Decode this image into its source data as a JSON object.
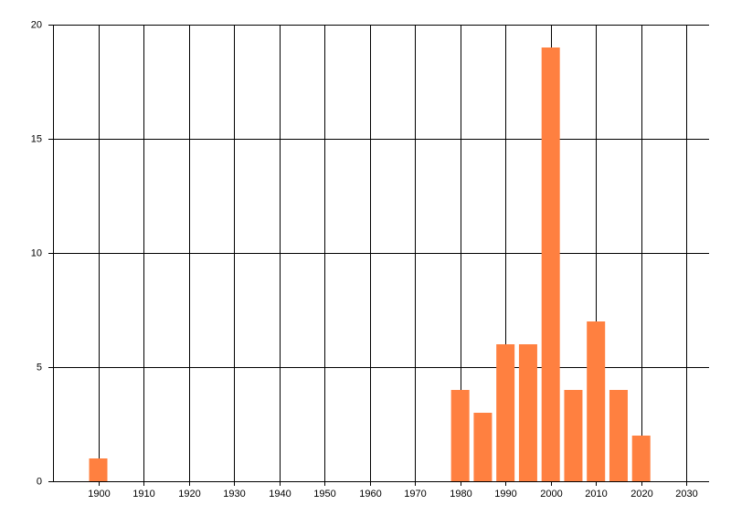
{
  "chart_data": {
    "type": "bar",
    "x": [
      1900,
      1980,
      1985,
      1990,
      1995,
      2000,
      2005,
      2010,
      2015,
      2020
    ],
    "values": [
      1,
      4,
      3,
      6,
      6,
      19,
      4,
      7,
      4,
      2
    ],
    "color": "#ff8040",
    "xlim": [
      1890,
      2035
    ],
    "xticks": [
      1900,
      1910,
      1920,
      1930,
      1940,
      1950,
      1960,
      1970,
      1980,
      1990,
      2000,
      2010,
      2020,
      2030
    ],
    "ylim": [
      0,
      20
    ],
    "yticks": [
      0,
      5,
      10,
      15,
      20
    ],
    "grid": true
  }
}
